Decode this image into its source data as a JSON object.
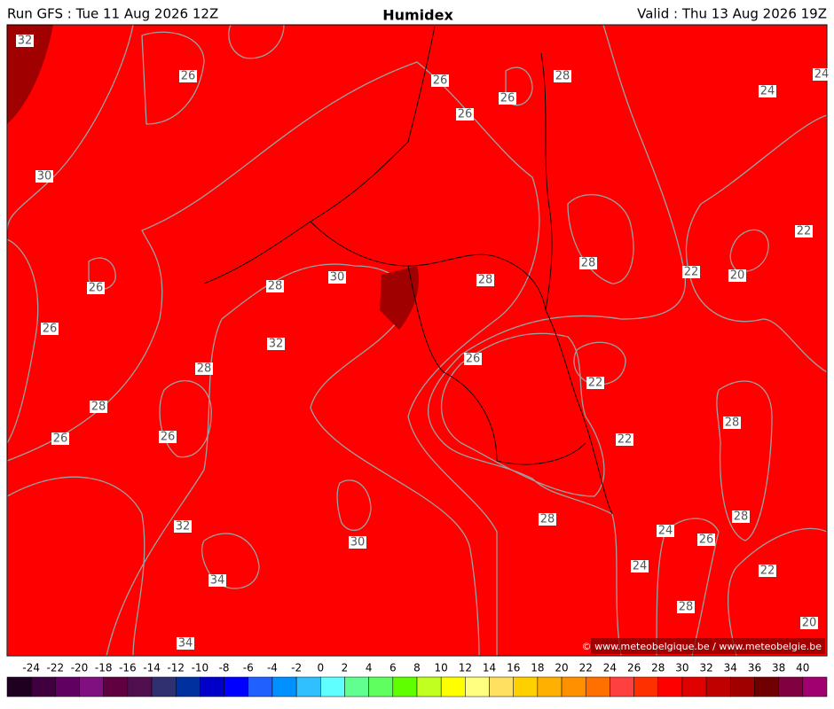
{
  "header": {
    "run": "Run GFS : Tue 11 Aug 2026 12Z",
    "title": "Humidex",
    "valid": "Valid : Thu 13 Aug 2026 19Z"
  },
  "footer": {
    "copyright": "© www.meteobelgique.be / www.meteobelgie.be"
  },
  "contour_labels": [
    32,
    26,
    30,
    26,
    26,
    28,
    28,
    26,
    26,
    32,
    34,
    34,
    30,
    32,
    28,
    30,
    26,
    26,
    26,
    28,
    24,
    24,
    22,
    20,
    22,
    28,
    28,
    26,
    22,
    22,
    28,
    28,
    28,
    24,
    26,
    24,
    22,
    28,
    20
  ],
  "colorbar": {
    "labels": [
      -24,
      -22,
      -20,
      -18,
      -16,
      -14,
      -12,
      -10,
      -8,
      -6,
      -4,
      -2,
      0,
      2,
      4,
      6,
      8,
      10,
      12,
      14,
      16,
      18,
      20,
      22,
      24,
      26,
      28,
      30,
      32,
      34,
      36,
      38,
      40
    ],
    "colors": [
      "#200020",
      "#400040",
      "#600060",
      "#801080",
      "#600040",
      "#501050",
      "#303070",
      "#0030a0",
      "#0000c8",
      "#0000ff",
      "#2060ff",
      "#0090ff",
      "#30c0ff",
      "#60ffff",
      "#60ff90",
      "#60ff60",
      "#60ff00",
      "#c0ff20",
      "#ffff00",
      "#ffff80",
      "#ffe060",
      "#ffd000",
      "#ffb000",
      "#ff9000",
      "#ff7000",
      "#ff4040",
      "#ff3000",
      "#ff0000",
      "#e00000",
      "#c00000",
      "#a00000",
      "#700000",
      "#800040",
      "#a00070"
    ]
  }
}
